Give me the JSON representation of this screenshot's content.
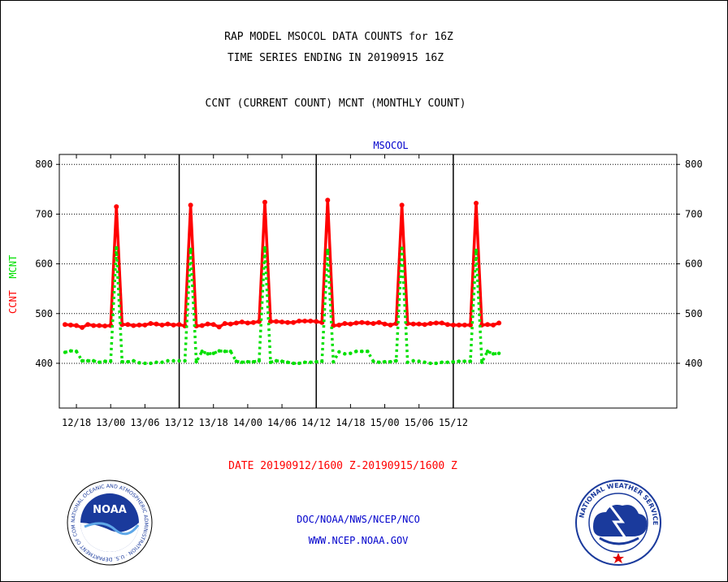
{
  "header": {
    "title_line1": "RAP MODEL MSOCOL DATA COUNTS for 16Z",
    "title_line2": "TIME SERIES ENDING IN 20190915 16Z",
    "subtitle": "CCNT (CURRENT COUNT) MCNT (MONTHLY COUNT)"
  },
  "footer": {
    "date_range": "DATE 20190912/1600 Z-20190915/1600 Z",
    "agency_line": "DOC/NOAA/NWS/NCEP/NCO",
    "url": "WWW.NCEP.NOAA.GOV"
  },
  "logos": {
    "left_text": "NOAA",
    "left_ring_text": "NATIONAL OCEANIC AND ATMOSPHERIC ADMINISTRATION · U.S. DEPARTMENT OF COMMERCE",
    "right_ring_text": "NATIONAL WEATHER SERVICE"
  },
  "colors": {
    "ccnt": "#ff0000",
    "mcnt": "#00e000",
    "title": "#000000",
    "date": "#ff0000",
    "links": "#0000cc"
  },
  "chart_data": {
    "type": "line",
    "title": "MSOCOL",
    "ylabel_parts": [
      {
        "text": "CCNT",
        "color": "#ff0000"
      },
      {
        "text": "MCNT",
        "color": "#00e000"
      }
    ],
    "x_ticks": [
      "12/18",
      "13/00",
      "13/06",
      "13/12",
      "13/18",
      "14/00",
      "14/06",
      "14/12",
      "14/18",
      "15/00",
      "15/06",
      "15/12"
    ],
    "y_ticks": [
      400,
      500,
      600,
      700,
      800
    ],
    "ylim": [
      310,
      820
    ],
    "grid": true,
    "series": [
      {
        "name": "CCNT",
        "color": "#ff0000",
        "style": "solid",
        "values": [
          478,
          477,
          476,
          472,
          478,
          476,
          476,
          475,
          476,
          715,
          478,
          478,
          476,
          477,
          477,
          480,
          479,
          477,
          479,
          477,
          478,
          475,
          718,
          475,
          476,
          479,
          478,
          473,
          480,
          479,
          481,
          483,
          481,
          482,
          484,
          724,
          484,
          484,
          483,
          482,
          482,
          485,
          485,
          485,
          484,
          482,
          728,
          476,
          477,
          480,
          479,
          481,
          482,
          481,
          480,
          482,
          479,
          477,
          480,
          718,
          480,
          479,
          479,
          478,
          480,
          481,
          481,
          478,
          477,
          477,
          477,
          477,
          722,
          477,
          478,
          477,
          481
        ]
      },
      {
        "name": "MCNT",
        "color": "#00e000",
        "style": "dotted",
        "values": [
          422,
          425,
          424,
          405,
          405,
          405,
          402,
          404,
          404,
          632,
          403,
          403,
          405,
          401,
          400,
          400,
          402,
          402,
          405,
          405,
          405,
          405,
          629,
          403,
          424,
          419,
          420,
          425,
          424,
          424,
          404,
          402,
          403,
          403,
          405,
          632,
          402,
          405,
          404,
          402,
          400,
          400,
          402,
          402,
          403,
          404,
          627,
          403,
          423,
          419,
          420,
          424,
          424,
          424,
          404,
          402,
          403,
          403,
          405,
          631,
          402,
          405,
          404,
          402,
          400,
          400,
          402,
          402,
          403,
          404,
          404,
          404,
          627,
          402,
          424,
          419,
          420
        ]
      }
    ]
  }
}
